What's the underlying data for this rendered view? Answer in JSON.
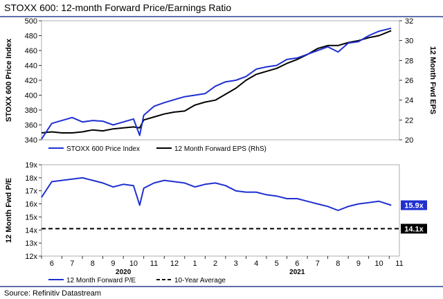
{
  "title": "STOXX 600: 12-month Forward Price/Earnings Ratio",
  "source": "Source: Refinitiv Datastream",
  "colors": {
    "blue": "#1f2fd0",
    "black": "#000000",
    "divider": "#2b3f8f"
  },
  "chart_data": [
    {
      "type": "line",
      "panel": "top",
      "ylabel_left": "STOXX 600 Price Index",
      "ylabel_right": "12 Month Fwd EPS",
      "ylim_left": [
        340,
        500
      ],
      "ylim_right": [
        20,
        32
      ],
      "left_ticks": [
        "340",
        "360",
        "380",
        "400",
        "420",
        "440",
        "460",
        "480",
        "500"
      ],
      "right_ticks": [
        "20",
        "22",
        "24",
        "26",
        "28",
        "30",
        "32"
      ],
      "x": [
        5.5,
        6.0,
        6.5,
        7.0,
        7.5,
        8.0,
        8.5,
        9.0,
        9.5,
        10.0,
        10.3,
        10.5,
        11.0,
        11.5,
        12.0,
        12.5,
        13.0,
        13.5,
        14.0,
        14.5,
        15.0,
        15.5,
        16.0,
        16.5,
        17.0,
        17.5,
        18.0,
        18.5,
        19.0,
        19.5,
        20.0,
        20.5,
        21.0,
        21.5,
        22.0,
        22.6
      ],
      "series": [
        {
          "name": "STOXX 600 Price Index",
          "axis": "left",
          "values": [
            341,
            362,
            366,
            370,
            364,
            366,
            365,
            360,
            364,
            368,
            346,
            373,
            385,
            390,
            394,
            398,
            400,
            402,
            412,
            418,
            420,
            425,
            435,
            438,
            440,
            448,
            450,
            455,
            460,
            465,
            458,
            470,
            472,
            480,
            486,
            490
          ]
        },
        {
          "name": "12 Month Forward EPS (RhS)",
          "axis": "right",
          "values": [
            20.7,
            20.8,
            20.7,
            20.7,
            20.8,
            21.0,
            20.9,
            21.1,
            21.2,
            21.3,
            21.2,
            22.0,
            22.3,
            22.6,
            22.8,
            22.9,
            23.5,
            23.8,
            24.0,
            24.6,
            25.2,
            26.0,
            26.6,
            26.9,
            27.2,
            27.7,
            28.1,
            28.6,
            29.2,
            29.5,
            29.5,
            29.8,
            30.0,
            30.3,
            30.5,
            31.0
          ]
        }
      ]
    },
    {
      "type": "line",
      "panel": "bottom",
      "ylabel": "12 Month Fwd P/E",
      "ylim": [
        12,
        19
      ],
      "y_ticks": [
        "12x",
        "13x",
        "14x",
        "15x",
        "16x",
        "17x",
        "18x",
        "19x"
      ],
      "x": [
        5.5,
        6.0,
        6.5,
        7.0,
        7.5,
        8.0,
        8.5,
        9.0,
        9.5,
        10.0,
        10.3,
        10.5,
        11.0,
        11.5,
        12.0,
        12.5,
        13.0,
        13.5,
        14.0,
        14.5,
        15.0,
        15.5,
        16.0,
        16.5,
        17.0,
        17.5,
        18.0,
        18.5,
        19.0,
        19.5,
        20.0,
        20.5,
        21.0,
        21.5,
        22.0,
        22.6
      ],
      "series": [
        {
          "name": "12 Month Forward P/E",
          "values": [
            16.5,
            17.7,
            17.8,
            17.9,
            18.0,
            17.8,
            17.6,
            17.3,
            17.5,
            17.4,
            15.9,
            17.2,
            17.6,
            17.8,
            17.7,
            17.6,
            17.3,
            17.5,
            17.6,
            17.4,
            17.0,
            16.9,
            16.9,
            16.7,
            16.6,
            16.4,
            16.4,
            16.2,
            16.0,
            15.8,
            15.5,
            15.8,
            16.0,
            16.1,
            16.2,
            15.9
          ]
        },
        {
          "name": "10-Year Average",
          "style": "dashed",
          "value": 14.1
        }
      ],
      "end_labels": {
        "pe": "15.9x",
        "avg": "14.1x"
      }
    }
  ],
  "x_axis": {
    "month_labels": [
      "6",
      "7",
      "8",
      "9",
      "10",
      "11",
      "12",
      "1",
      "2",
      "3",
      "4",
      "5",
      "6",
      "7",
      "8",
      "9",
      "10",
      "11"
    ],
    "month_positions": [
      6,
      7,
      8,
      9,
      10,
      11,
      12,
      13,
      14,
      15,
      16,
      17,
      18,
      19,
      20,
      21,
      22,
      23
    ],
    "years": [
      {
        "label": "2020",
        "position": 9.5
      },
      {
        "label": "2021",
        "position": 18.0
      }
    ],
    "range": [
      5.5,
      23.0
    ]
  }
}
